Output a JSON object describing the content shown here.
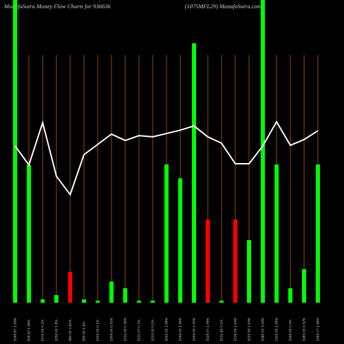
{
  "chart_data": {
    "type": "bar",
    "title": "MunafaSutra  Money Flow  Charts for 936636",
    "subtitle": "(1075MFL29) MunafaSutra.com",
    "categories": [
      "1069.87 1.06%",
      "928.40 1.96%",
      "1070.00 0.2%",
      "1050.00 1.8%",
      "960.00 3.62%",
      "990.00 1.6%",
      "1000.00 0.1%",
      "1004.00 0.42%",
      "1012.00 0.36%",
      "1011.07 0.1%",
      "1013.00 0.2%",
      "1042.00 1.06%",
      "1044.00 1.06%",
      "1044.00 2.05%",
      "1028.07 1.06%",
      "1012.40 0.1%",
      "1036.50 1.04%",
      "1020.90 1.04%",
      "1080.00 3.04%",
      "1100.00 1.06%",
      "1094.00 0.4%",
      "1065.00 0.52%",
      "1084.77 1.06%"
    ],
    "ylim": [
      0,
      100
    ],
    "background": "#000000",
    "bars": {
      "values": [
        100,
        45.5,
        1.1,
        2.5,
        10.2,
        1.1,
        0.7,
        7.0,
        4.8,
        0.7,
        0.7,
        45.7,
        41.1,
        85.7,
        27.5,
        0.7,
        27.5,
        20.7,
        100,
        45.7,
        4.8,
        11.1,
        45.7
      ],
      "colors": [
        "#00ff00",
        "#00ff00",
        "#00ff00",
        "#00ff00",
        "#ff0000",
        "#00ff00",
        "#00ff00",
        "#00ff00",
        "#00ff00",
        "#00ff00",
        "#00ff00",
        "#00ff00",
        "#00ff00",
        "#00ff00",
        "#ff0000",
        "#00ff00",
        "#ff0000",
        "#00ff00",
        "#00ff00",
        "#00ff00",
        "#00ff00",
        "#00ff00",
        "#00ff00"
      ]
    },
    "line": {
      "color": "#ffffff",
      "values": [
        51.8,
        45.5,
        59.5,
        41.8,
        35.7,
        48.9,
        52.3,
        55.7,
        53.6,
        55.2,
        54.8,
        55.9,
        57.0,
        58.4,
        54.8,
        52.7,
        45.9,
        45.9,
        51.8,
        59.8,
        52.0,
        53.9,
        56.8
      ]
    },
    "divider_color": "#b8620a"
  }
}
